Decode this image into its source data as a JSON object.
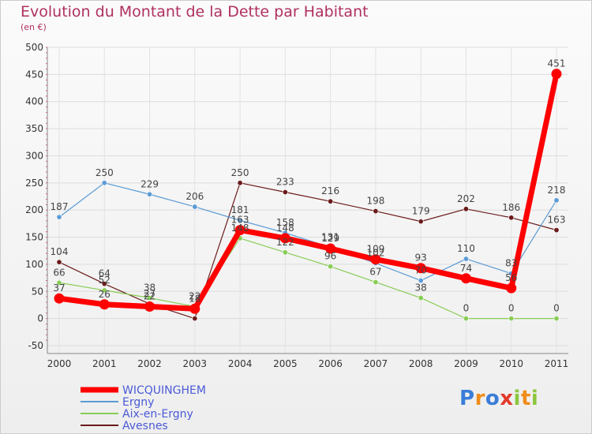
{
  "title": "Evolution du Montant de la Dette par Habitant",
  "unit": "(en €)",
  "logo": {
    "text": "Proxiti",
    "letters": [
      {
        "ch": "P",
        "color": "#3a7dd8"
      },
      {
        "ch": "r",
        "color": "#f08c1a"
      },
      {
        "ch": "o",
        "color": "#3a7dd8"
      },
      {
        "ch": "x",
        "color": "#e23a2a"
      },
      {
        "ch": "i",
        "color": "#8cc63f"
      },
      {
        "ch": "t",
        "color": "#f08c1a"
      },
      {
        "ch": "i",
        "color": "#8cc63f"
      }
    ]
  },
  "chart_data": {
    "type": "line",
    "x": [
      "2000",
      "2001",
      "2002",
      "2003",
      "2004",
      "2005",
      "2006",
      "2007",
      "2008",
      "2009",
      "2010",
      "2011"
    ],
    "yticks": [
      "500",
      "450",
      "400",
      "350",
      "300",
      "250",
      "200",
      "150",
      "100",
      "50",
      "0",
      "-50"
    ],
    "ylim": [
      -50,
      500
    ],
    "legend_position": "bottom-left",
    "series": [
      {
        "name": "Avesnes",
        "color": "#6b1b1b",
        "width": 1.2,
        "marker": 3.2,
        "values": [
          104,
          64,
          27,
          0,
          250,
          233,
          216,
          198,
          179,
          202,
          186,
          163
        ],
        "labels": [
          "104",
          "64",
          "27",
          "",
          "250",
          "233",
          "216",
          "198",
          "179",
          "202",
          "186",
          "163"
        ]
      },
      {
        "name": "Aix-en-Ergny",
        "color": "#88cc55",
        "width": 1.2,
        "marker": 3.2,
        "values": [
          66,
          52,
          38,
          22,
          148,
          122,
          96,
          67,
          38,
          0,
          0,
          0
        ],
        "labels": [
          "66",
          "52",
          "38",
          "22",
          "148",
          "122",
          "96",
          "67",
          "38",
          "0",
          "0",
          "0"
        ]
      },
      {
        "name": "Ergny",
        "color": "#5b9bd5",
        "width": 1.2,
        "marker": 3.2,
        "values": [
          187,
          250,
          229,
          206,
          181,
          158,
          131,
          102,
          70,
          110,
          83,
          218
        ],
        "labels": [
          "187",
          "250",
          "229",
          "206",
          "181",
          "158",
          "131",
          "102",
          "70",
          "110",
          "83",
          "218"
        ]
      },
      {
        "name": "WICQUINGHEM",
        "color": "#ff0000",
        "width": 7,
        "marker": 6.5,
        "values": [
          37,
          26,
          22,
          18,
          163,
          148,
          129,
          109,
          93,
          74,
          56,
          451
        ],
        "labels": [
          "37",
          "26",
          "22",
          "18",
          "163",
          "148",
          "129",
          "109",
          "93",
          "74",
          "56",
          "451"
        ]
      }
    ],
    "legend": [
      {
        "name": "WICQUINGHEM",
        "color": "#ff0000",
        "thick": true
      },
      {
        "name": "Ergny",
        "color": "#5b9bd5",
        "thick": false
      },
      {
        "name": "Aix-en-Ergny",
        "color": "#88cc55",
        "thick": false
      },
      {
        "name": "Avesnes",
        "color": "#6b1b1b",
        "thick": false
      }
    ]
  }
}
